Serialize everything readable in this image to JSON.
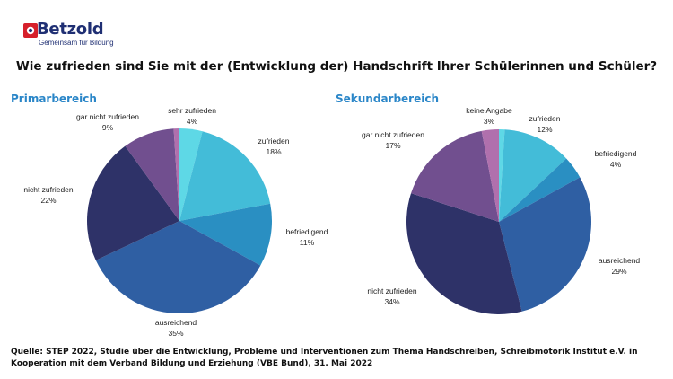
{
  "logo": {
    "name": "Betzold",
    "tagline": "Gemeinsam für Bildung"
  },
  "title": "Wie zufrieden sind Sie mit der (Entwicklung der) Handschrift Ihrer Schülerinnen und Schüler?",
  "colors": {
    "brand": "#1f2f73",
    "accent_red": "#d6202b",
    "subtitle": "#2a86c8",
    "sehr_zufrieden": "#5ed8e6",
    "zufrieden": "#43bcd8",
    "befriedigend": "#2a8fc2",
    "ausreichend": "#2f5fa3",
    "nicht_zufrieden": "#2e3268",
    "gar_nicht_zufrieden": "#714f8f",
    "keine_angabe": "#b070ad"
  },
  "chart_data": [
    {
      "type": "pie",
      "title": "Primarbereich",
      "slices": [
        {
          "label": "sehr zufrieden",
          "value": 4,
          "display": "4%",
          "color": "#5ed8e6"
        },
        {
          "label": "zufrieden",
          "value": 18,
          "display": "18%",
          "color": "#43bcd8"
        },
        {
          "label": "befriedigend",
          "value": 11,
          "display": "11%",
          "color": "#2a8fc2"
        },
        {
          "label": "ausreichend",
          "value": 35,
          "display": "35%",
          "color": "#2f5fa3"
        },
        {
          "label": "nicht zufrieden",
          "value": 22,
          "display": "22%",
          "color": "#2e3268"
        },
        {
          "label": "gar nicht zufrieden",
          "value": 9,
          "display": "9%",
          "color": "#714f8f"
        },
        {
          "label": "",
          "value": 1,
          "display": "",
          "color": "#b070ad"
        }
      ]
    },
    {
      "type": "pie",
      "title": "Sekundarbereich",
      "slices": [
        {
          "label": "",
          "value": 1,
          "display": "",
          "color": "#5ed8e6"
        },
        {
          "label": "zufrieden",
          "value": 12,
          "display": "12%",
          "color": "#43bcd8"
        },
        {
          "label": "befriedigend",
          "value": 4,
          "display": "4%",
          "color": "#2a8fc2"
        },
        {
          "label": "ausreichend",
          "value": 29,
          "display": "29%",
          "color": "#2f5fa3"
        },
        {
          "label": "nicht zufrieden",
          "value": 34,
          "display": "34%",
          "color": "#2e3268"
        },
        {
          "label": "gar nicht zufrieden",
          "value": 17,
          "display": "17%",
          "color": "#714f8f"
        },
        {
          "label": "keine Angabe",
          "value": 3,
          "display": "3%",
          "color": "#b070ad"
        }
      ]
    }
  ],
  "source": "Quelle: STEP 2022, Studie über die Entwicklung, Probleme und Interventionen zum Thema Handschreiben, Schreibmotorik Institut e.V. in Kooperation mit dem Verband Bildung und Erziehung (VBE Bund), 31. Mai 2022"
}
